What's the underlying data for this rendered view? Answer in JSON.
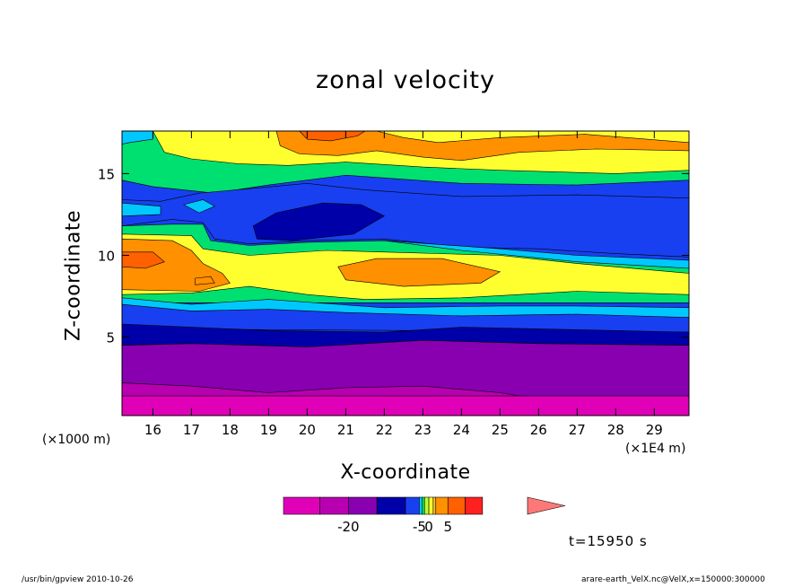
{
  "chart_data": {
    "type": "heatmap",
    "title": "zonal velocity",
    "xlabel": "X-coordinate",
    "ylabel": "Z-coordinate",
    "x_unit_note": "(×1000 m)",
    "x_scale_note": "(×1E4 m)",
    "xlim": [
      15.2,
      29.9
    ],
    "ylim": [
      0.2,
      17.6
    ],
    "x_ticks": [
      16,
      17,
      18,
      19,
      20,
      21,
      22,
      23,
      24,
      25,
      26,
      27,
      28,
      29
    ],
    "y_ticks": [
      5,
      10,
      15
    ],
    "colorbar": {
      "boundaries": [
        -30,
        -25,
        -20,
        -15,
        -10,
        -5,
        -2,
        -1,
        0,
        1,
        2,
        5,
        10,
        15,
        20
      ],
      "colors": [
        "#e000b8",
        "#b800b0",
        "#8800b0",
        "#0000a8",
        "#1840f0",
        "#00c8ff",
        "#00e070",
        "#b8ff30",
        "#ffff30",
        "#ffc020",
        "#ff9000",
        "#ff6000",
        "#ff2020",
        "#ff7878"
      ],
      "tick_labels": [
        "-20",
        "-5",
        "0",
        "5"
      ],
      "tick_values": [
        -20,
        -5,
        0,
        5
      ],
      "extend": "max"
    },
    "bands_by_z": [
      {
        "z_range": [
          0.2,
          1.9
        ],
        "u": -27
      },
      {
        "z_range": [
          1.9,
          4.7
        ],
        "u": -22
      },
      {
        "z_range": [
          4.7,
          6.1
        ],
        "u": -12
      },
      {
        "z_range": [
          6.1,
          7.0
        ],
        "u": -7
      },
      {
        "z_range": [
          7.0,
          7.7
        ],
        "u": -3
      },
      {
        "z_range": [
          7.7,
          9.8
        ],
        "u": 1,
        "note": "yellow/orange lens near x=21-25, z≈8.5-9.5"
      },
      {
        "z_range": [
          9.8,
          14.3
        ],
        "u": -7,
        "note": "jet core (dark blue) near x=19-21, z≈11-13"
      },
      {
        "z_range": [
          14.3,
          17.6
        ],
        "u": 2,
        "note": "orange maxima near x=20 and x=23, z≈16"
      }
    ],
    "time_label": "t=15950 s"
  },
  "footer": {
    "left": "/usr/bin/gpview  2010-10-26",
    "right": "arare-earth_VelX.nc@VelX,x=150000:300000"
  }
}
